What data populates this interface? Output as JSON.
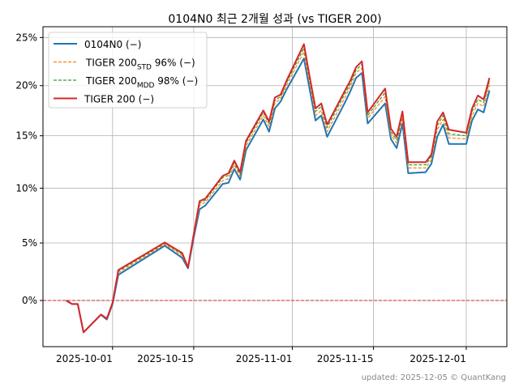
{
  "chart_data": {
    "type": "line",
    "title": "0104N0 최근 2개월 성과 (vs TIGER 200)",
    "xlabel": "",
    "ylabel": "",
    "yscale": "log",
    "xlim": [
      "2025-09-19",
      "2025-12-08"
    ],
    "ylim": [
      -3.84,
      26.15
    ],
    "grid": true,
    "legend_position": "top-left",
    "x_ticks": [
      "2025-10-01",
      "2025-10-15",
      "2025-11-01",
      "2025-11-15",
      "2025-12-01"
    ],
    "y_ticks": [
      0,
      5,
      10,
      15,
      20,
      25
    ],
    "y_tick_labels": [
      "0%",
      "5%",
      "10%",
      "15%",
      "20%",
      "25%"
    ],
    "reference_line": {
      "y": 0,
      "color": "#d62728",
      "style": "dashed"
    },
    "x": [
      "2025-09-23",
      "2025-09-24",
      "2025-09-25",
      "2025-09-26",
      "2025-09-29",
      "2025-09-30",
      "2025-10-01",
      "2025-10-02",
      "2025-10-10",
      "2025-10-13",
      "2025-10-14",
      "2025-10-15",
      "2025-10-16",
      "2025-10-17",
      "2025-10-20",
      "2025-10-21",
      "2025-10-22",
      "2025-10-23",
      "2025-10-24",
      "2025-10-27",
      "2025-10-28",
      "2025-10-29",
      "2025-10-30",
      "2025-10-31",
      "2025-11-03",
      "2025-11-04",
      "2025-11-05",
      "2025-11-06",
      "2025-11-07",
      "2025-11-10",
      "2025-11-11",
      "2025-11-12",
      "2025-11-13",
      "2025-11-14",
      "2025-11-17",
      "2025-11-18",
      "2025-11-19",
      "2025-11-20",
      "2025-11-21",
      "2025-11-24",
      "2025-11-25",
      "2025-11-26",
      "2025-11-27",
      "2025-11-28",
      "2025-12-01",
      "2025-12-02",
      "2025-12-03",
      "2025-12-04",
      "2025-12-05"
    ],
    "series": [
      {
        "name": "0104N0",
        "legend_main": "0104N0 (−)",
        "legend_sub": "",
        "legend_suffix": "",
        "color": "#1f77b4",
        "style": "solid",
        "values": [
          0,
          -0.3,
          -0.3,
          -2.66,
          -1.2,
          -1.6,
          -0.3,
          2.2,
          4.76,
          3.69,
          2.77,
          5.5,
          8.05,
          8.4,
          10.4,
          10.5,
          11.8,
          10.8,
          13.6,
          16.6,
          15.4,
          17.7,
          18.4,
          19.6,
          22.8,
          19.6,
          16.5,
          17.0,
          14.9,
          18.2,
          19.4,
          20.8,
          21.3,
          16.2,
          18.2,
          14.7,
          13.8,
          16.2,
          11.4,
          11.5,
          12.3,
          14.9,
          16.1,
          14.2,
          14.2,
          16.5,
          17.6,
          17.3,
          19.5
        ]
      },
      {
        "name": "TIGER 200 STD 96%",
        "legend_main": "TIGER 200",
        "legend_sub": "STD",
        "legend_suffix": " 96% (−)",
        "color": "#ff7f0e",
        "style": "dashed",
        "values": [
          0,
          -0.3,
          -0.3,
          -2.66,
          -1.19,
          -1.56,
          -0.26,
          2.39,
          4.89,
          3.88,
          2.8,
          5.6,
          8.4,
          8.7,
          10.7,
          10.9,
          12.2,
          11.1,
          14.0,
          17.0,
          15.9,
          18.2,
          18.7,
          20.0,
          23.5,
          20.2,
          17.0,
          17.5,
          15.4,
          18.7,
          19.9,
          21.3,
          21.8,
          16.7,
          18.9,
          15.1,
          14.3,
          16.7,
          11.9,
          11.9,
          12.7,
          15.6,
          16.6,
          14.8,
          14.7,
          17.0,
          18.2,
          17.9,
          20.1
        ]
      },
      {
        "name": "TIGER 200 MDD 98%",
        "legend_main": "TIGER 200",
        "legend_sub": "MDD",
        "legend_suffix": " 98% (−)",
        "color": "#2ca02c",
        "style": "dashed",
        "values": [
          0,
          -0.3,
          -0.3,
          -2.66,
          -1.18,
          -1.54,
          -0.22,
          2.52,
          4.98,
          4.01,
          2.82,
          5.7,
          8.6,
          8.9,
          11.0,
          11.2,
          12.4,
          11.3,
          14.3,
          17.3,
          16.2,
          18.5,
          18.9,
          20.3,
          23.9,
          20.6,
          17.4,
          17.9,
          15.8,
          19.1,
          20.2,
          21.6,
          22.2,
          17.0,
          19.3,
          15.4,
          14.6,
          17.1,
          12.2,
          12.2,
          13.0,
          16.0,
          17.0,
          15.2,
          15.0,
          17.4,
          18.6,
          18.3,
          20.5
        ]
      },
      {
        "name": "TIGER 200",
        "legend_main": "TIGER 200 (−)",
        "legend_sub": "",
        "legend_suffix": "",
        "color": "#d62728",
        "style": "solid",
        "values": [
          0,
          -0.3,
          -0.3,
          -2.66,
          -1.18,
          -1.52,
          -0.2,
          2.62,
          5.05,
          4.12,
          2.84,
          5.8,
          8.8,
          9.03,
          11.15,
          11.4,
          12.6,
          11.5,
          14.5,
          17.5,
          16.4,
          18.8,
          19.1,
          20.5,
          24.3,
          20.9,
          17.7,
          18.2,
          16.1,
          19.4,
          20.5,
          21.9,
          22.5,
          17.3,
          19.7,
          15.7,
          14.9,
          17.4,
          12.45,
          12.45,
          13.2,
          16.4,
          17.3,
          15.6,
          15.3,
          17.7,
          19.0,
          18.6,
          20.8
        ]
      }
    ]
  },
  "footer": "updated: 2025-12-05 © QuantKang"
}
